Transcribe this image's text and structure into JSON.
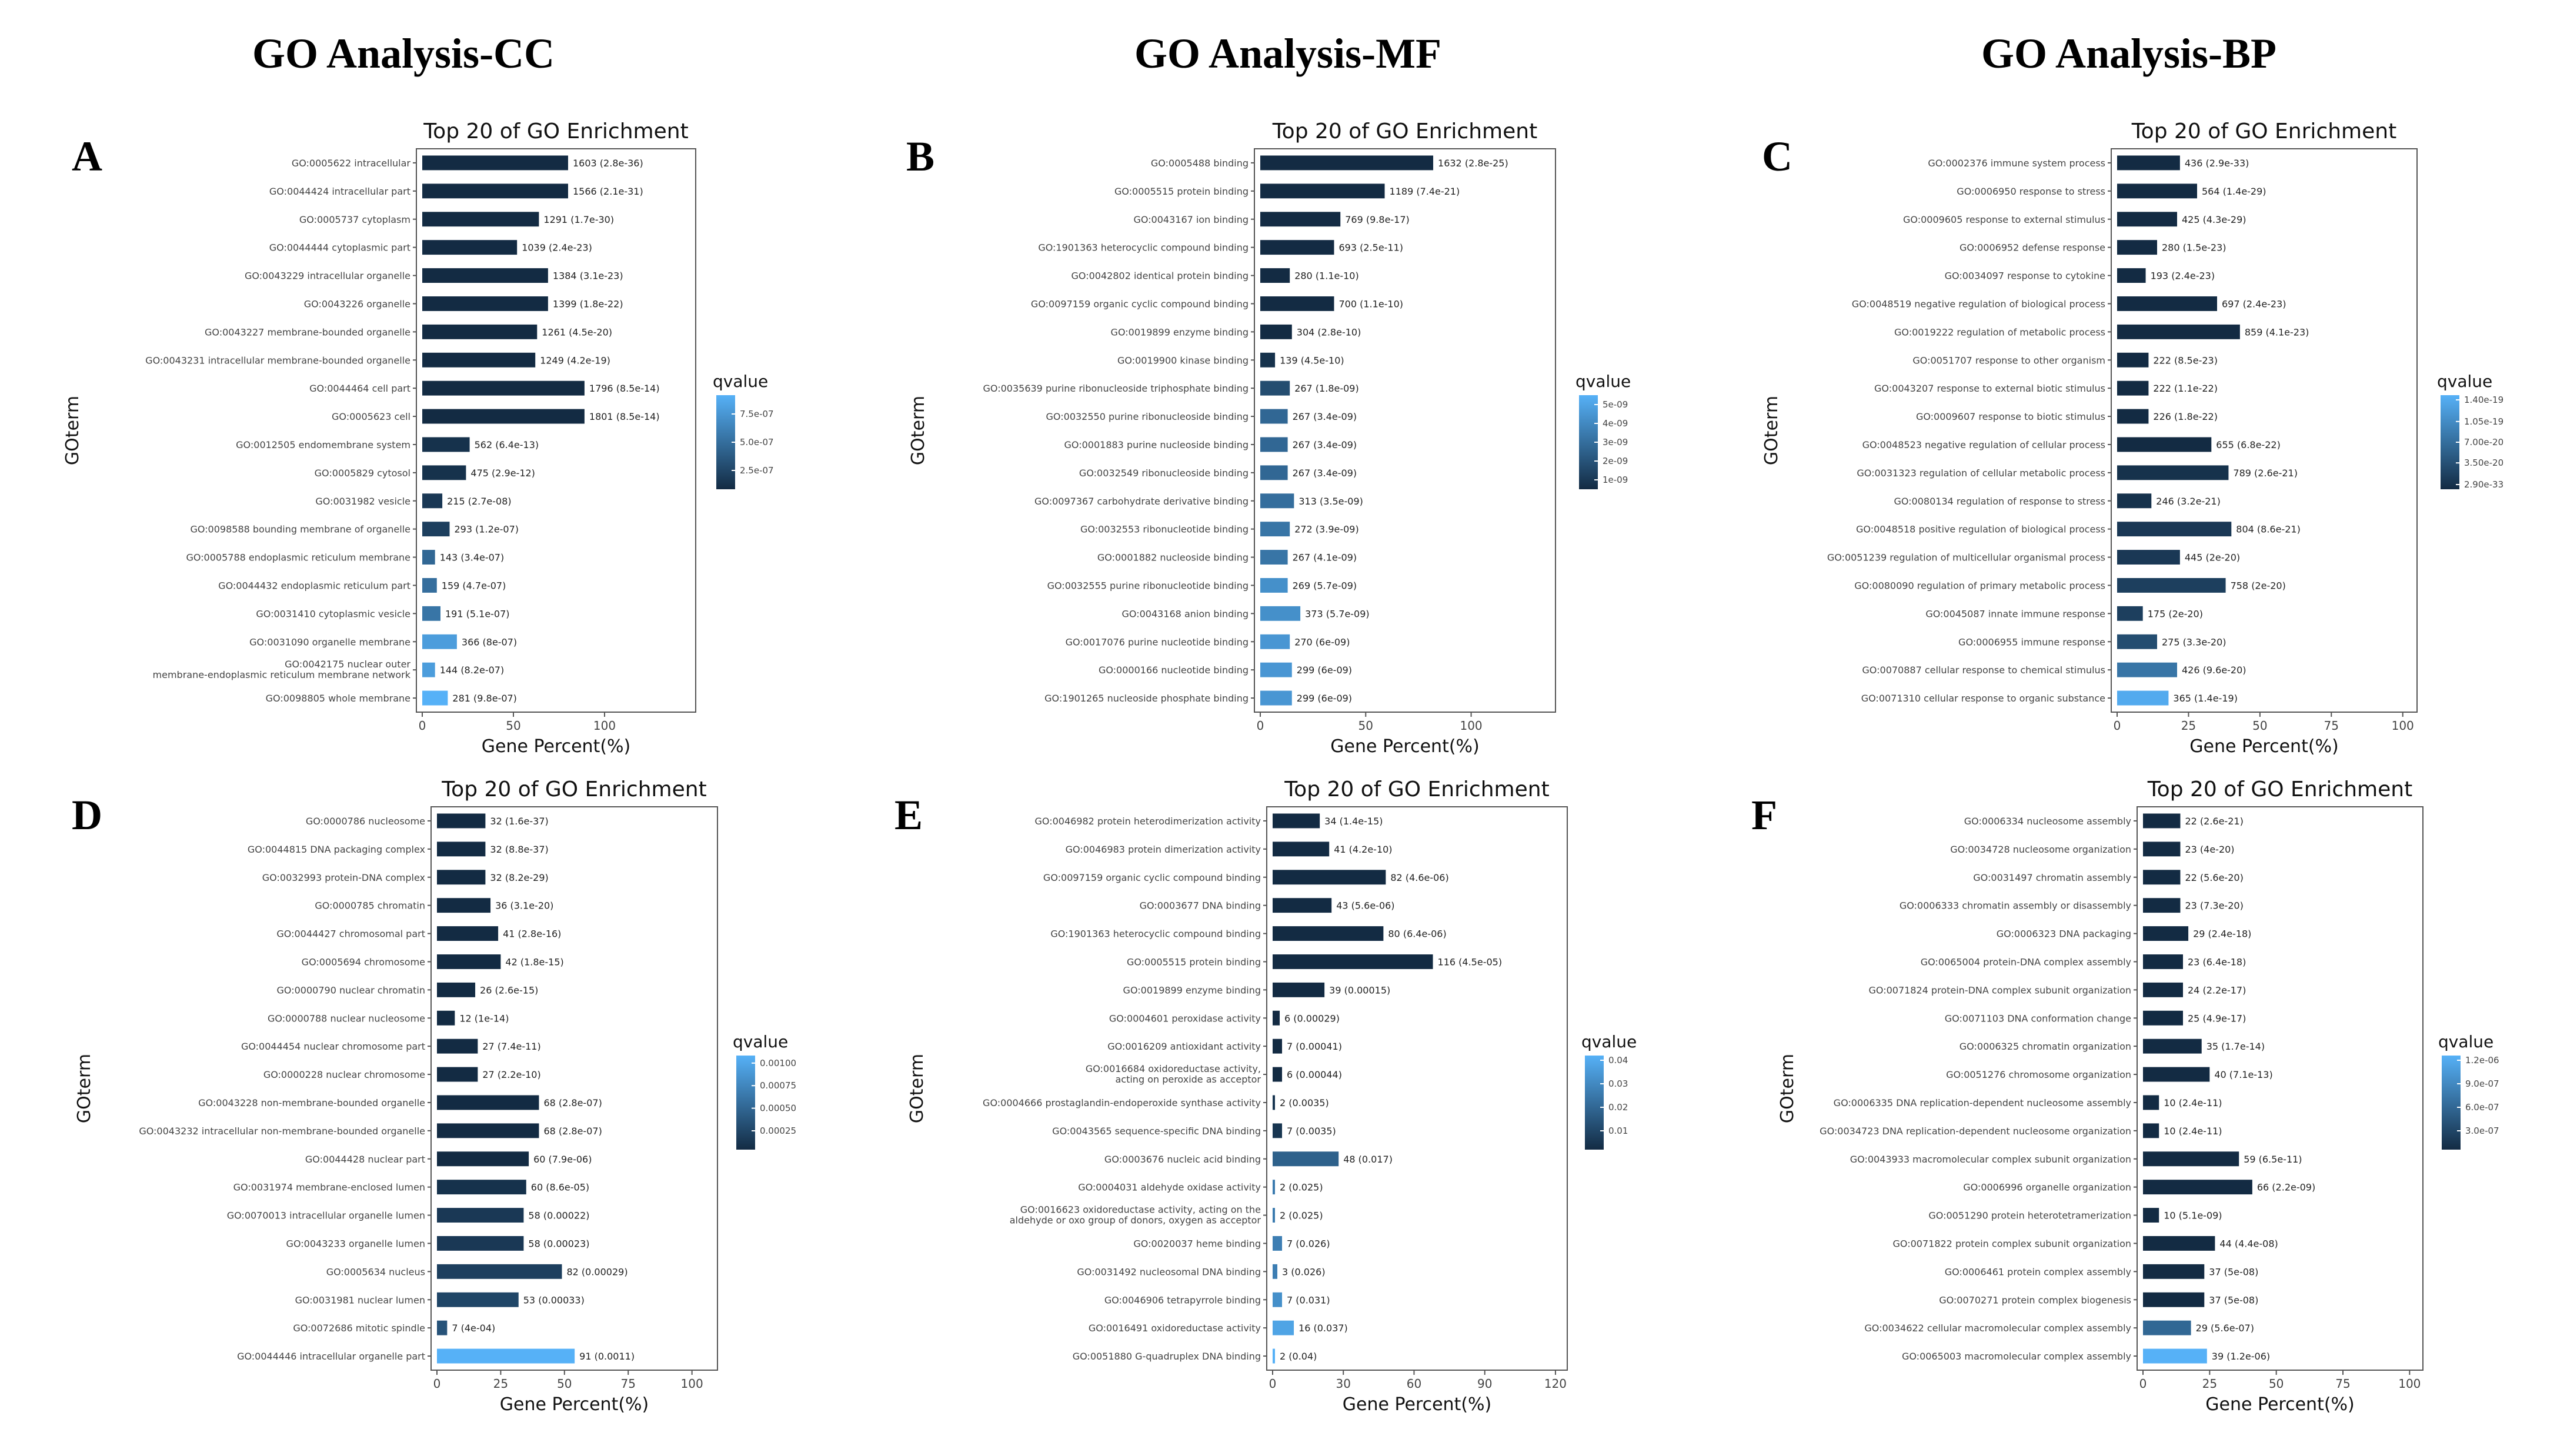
{
  "column_titles": [
    "GO Analysis-CC",
    "GO Analysis-MF",
    "GO Analysis-BP"
  ],
  "chart_data": [
    {
      "type": "bar",
      "panel_letter": "A",
      "title": "Top 20 of GO Enrichment",
      "xlabel": "Gene Percent(%)",
      "ylabel": "GOterm",
      "xlim": [
        0,
        150
      ],
      "xticks": [
        "0",
        "50",
        "100"
      ],
      "xtick_values": [
        0,
        50,
        100
      ],
      "legend_title": "qvalue",
      "legend_labels": [
        "7.5e-07",
        "5.0e-07",
        "2.5e-07"
      ],
      "legend_stops": [
        0.8,
        0.5,
        0.2
      ],
      "categories": [
        "GO:0005622 intracellular",
        "GO:0044424 intracellular part",
        "GO:0005737 cytoplasm",
        "GO:0044444 cytoplasmic part",
        "GO:0043229 intracellular organelle",
        "GO:0043226 organelle",
        "GO:0043227 membrane-bounded organelle",
        "GO:0043231 intracellular membrane-bounded organelle",
        "GO:0044464 cell part",
        "GO:0005623 cell",
        "GO:0012505 endomembrane system",
        "GO:0005829 cytosol",
        "GO:0031982 vesicle",
        "GO:0098588 bounding membrane of organelle",
        "GO:0005788 endoplasmic reticulum membrane",
        "GO:0044432 endoplasmic reticulum part",
        "GO:0031410 cytoplasmic vesicle",
        "GO:0031090 organelle membrane",
        "GO:0042175 nuclear outer membrane-endoplasmic reticulum membrane network",
        "GO:0098805 whole membrane"
      ],
      "values": [
        80,
        80,
        64,
        52,
        69,
        69,
        63,
        62,
        89,
        89,
        26,
        24,
        11,
        15,
        7,
        8,
        10,
        19,
        7,
        14
      ],
      "labels": [
        "1603 (2.8e-36)",
        "1566 (2.1e-31)",
        "1291 (1.7e-30)",
        "1039 (2.4e-23)",
        "1384 (3.1e-23)",
        "1399 (1.8e-22)",
        "1261 (4.5e-20)",
        "1249 (4.2e-19)",
        "1796 (8.5e-14)",
        "1801 (8.5e-14)",
        "562 (6.4e-13)",
        "475 (2.9e-12)",
        "215 (2.7e-08)",
        "293 (1.2e-07)",
        "143 (3.4e-07)",
        "159 (4.7e-07)",
        "191 (5.1e-07)",
        "366 (8e-07)",
        "144 (8.2e-07)",
        "281 (9.8e-07)"
      ],
      "color_levels": [
        0,
        0,
        0,
        0,
        0,
        0,
        0,
        0,
        0,
        0,
        0.05,
        0.05,
        0.1,
        0.15,
        0.45,
        0.5,
        0.55,
        0.85,
        0.85,
        1.0
      ]
    },
    {
      "type": "bar",
      "panel_letter": "B",
      "title": "Top 20 of GO Enrichment",
      "xlabel": "Gene Percent(%)",
      "ylabel": "GOterm",
      "xlim": [
        0,
        140
      ],
      "xticks": [
        "0",
        "50",
        "100"
      ],
      "xtick_values": [
        0,
        50,
        100
      ],
      "legend_title": "qvalue",
      "legend_labels": [
        "5e-09",
        "4e-09",
        "3e-09",
        "2e-09",
        "1e-09"
      ],
      "legend_stops": [
        0.9,
        0.7,
        0.5,
        0.3,
        0.1
      ],
      "categories": [
        "GO:0005488 binding",
        "GO:0005515 protein binding",
        "GO:0043167 ion binding",
        "GO:1901363 heterocyclic compound binding",
        "GO:0042802 identical protein binding",
        "GO:0097159 organic cyclic compound binding",
        "GO:0019899 enzyme binding",
        "GO:0019900 kinase binding",
        "GO:0035639 purine ribonucleoside triphosphate binding",
        "GO:0032550 purine ribonucleoside binding",
        "GO:0001883 purine nucleoside binding",
        "GO:0032549 ribonucleoside binding",
        "GO:0097367 carbohydrate derivative binding",
        "GO:0032553 ribonucleotide binding",
        "GO:0001882 nucleoside binding",
        "GO:0032555 purine ribonucleotide binding",
        "GO:0043168 anion binding",
        "GO:0017076 purine nucleotide binding",
        "GO:0000166 nucleotide binding",
        "GO:1901265 nucleoside phosphate binding"
      ],
      "values": [
        82,
        59,
        38,
        35,
        14,
        35,
        15,
        7,
        14,
        13,
        13,
        13,
        16,
        14,
        13,
        13,
        19,
        14,
        15,
        15
      ],
      "labels": [
        "1632 (2.8e-25)",
        "1189 (7.4e-21)",
        "769 (9.8e-17)",
        "693 (2.5e-11)",
        "280 (1.1e-10)",
        "700 (1.1e-10)",
        "304 (2.8e-10)",
        "139 (4.5e-10)",
        "267 (1.8e-09)",
        "267 (3.4e-09)",
        "267 (3.4e-09)",
        "267 (3.4e-09)",
        "313 (3.5e-09)",
        "272 (3.9e-09)",
        "267 (4.1e-09)",
        "269 (5.7e-09)",
        "373 (5.7e-09)",
        "270 (6e-09)",
        "299 (6e-09)",
        "299 (6e-09)"
      ],
      "color_levels": [
        0,
        0,
        0,
        0,
        0,
        0,
        0,
        0.05,
        0.25,
        0.45,
        0.45,
        0.45,
        0.5,
        0.55,
        0.55,
        0.75,
        0.75,
        0.8,
        0.8,
        0.8
      ]
    },
    {
      "type": "bar",
      "panel_letter": "C",
      "title": "Top 20 of GO Enrichment",
      "xlabel": "Gene Percent(%)",
      "ylabel": "GOterm",
      "xlim": [
        0,
        105
      ],
      "xticks": [
        "0",
        "25",
        "50",
        "75",
        "100"
      ],
      "xtick_values": [
        0,
        25,
        50,
        75,
        100
      ],
      "legend_title": "qvalue",
      "legend_labels": [
        "1.40e-19",
        "1.05e-19",
        "7.00e-20",
        "3.50e-20",
        "2.90e-33"
      ],
      "legend_stops": [
        0.95,
        0.72,
        0.5,
        0.28,
        0.05
      ],
      "categories": [
        "GO:0002376 immune system process",
        "GO:0006950 response to stress",
        "GO:0009605 response to external stimulus",
        "GO:0006952 defense response",
        "GO:0034097 response to cytokine",
        "GO:0048519 negative regulation of biological process",
        "GO:0019222 regulation of metabolic process",
        "GO:0051707 response to other organism",
        "GO:0043207 response to external biotic stimulus",
        "GO:0009607 response to biotic stimulus",
        "GO:0048523 negative regulation of cellular process",
        "GO:0031323 regulation of cellular metabolic process",
        "GO:0080134 regulation of response to stress",
        "GO:0048518 positive regulation of biological process",
        "GO:0051239 regulation of multicellular organismal process",
        "GO:0080090 regulation of primary metabolic process",
        "GO:0045087 innate immune response",
        "GO:0006955 immune response",
        "GO:0070887 cellular response to chemical stimulus",
        "GO:0071310 cellular response to organic substance"
      ],
      "values": [
        22,
        28,
        21,
        14,
        10,
        35,
        43,
        11,
        11,
        11,
        33,
        39,
        12,
        40,
        22,
        38,
        9,
        14,
        21,
        18
      ],
      "labels": [
        "436 (2.9e-33)",
        "564 (1.4e-29)",
        "425 (4.3e-29)",
        "280 (1.5e-23)",
        "193 (2.4e-23)",
        "697 (2.4e-23)",
        "859 (4.1e-23)",
        "222 (8.5e-23)",
        "222 (1.1e-22)",
        "226 (1.8e-22)",
        "655 (6.8e-22)",
        "789 (2.6e-21)",
        "246 (3.2e-21)",
        "804 (8.6e-21)",
        "445 (2e-20)",
        "758 (2e-20)",
        "175 (2e-20)",
        "275 (3.3e-20)",
        "426 (9.6e-20)",
        "365 (1.4e-19)"
      ],
      "color_levels": [
        0,
        0,
        0,
        0,
        0,
        0,
        0,
        0,
        0,
        0,
        0,
        0.05,
        0.05,
        0.1,
        0.1,
        0.15,
        0.15,
        0.25,
        0.55,
        0.95
      ]
    },
    {
      "type": "bar",
      "panel_letter": "D",
      "title": "Top 20 of GO Enrichment",
      "xlabel": "Gene Percent(%)",
      "ylabel": "GOterm",
      "xlim": [
        0,
        110
      ],
      "xticks": [
        "0",
        "25",
        "50",
        "75",
        "100"
      ],
      "xtick_values": [
        0,
        25,
        50,
        75,
        100
      ],
      "legend_title": "qvalue",
      "legend_labels": [
        "0.00100",
        "0.00075",
        "0.00050",
        "0.00025"
      ],
      "legend_stops": [
        0.92,
        0.68,
        0.44,
        0.2
      ],
      "categories": [
        "GO:0000786 nucleosome",
        "GO:0044815 DNA packaging complex",
        "GO:0032993 protein-DNA complex",
        "GO:0000785 chromatin",
        "GO:0044427 chromosomal part",
        "GO:0005694 chromosome",
        "GO:0000790 nuclear chromatin",
        "GO:0000788 nuclear nucleosome",
        "GO:0044454 nuclear chromosome part",
        "GO:0000228 nuclear chromosome",
        "GO:0043228 non-membrane-bounded organelle",
        "GO:0043232 intracellular non-membrane-bounded organelle",
        "GO:0044428 nuclear part",
        "GO:0031974 membrane-enclosed lumen",
        "GO:0070013 intracellular organelle lumen",
        "GO:0043233 organelle lumen",
        "GO:0005634 nucleus",
        "GO:0031981 nuclear lumen",
        "GO:0072686 mitotic spindle",
        "GO:0044446 intracellular organelle part"
      ],
      "values": [
        19,
        19,
        19,
        21,
        24,
        25,
        15,
        7,
        16,
        16,
        40,
        40,
        36,
        35,
        34,
        34,
        49,
        32,
        4,
        54
      ],
      "labels": [
        "32 (1.6e-37)",
        "32 (8.8e-37)",
        "32 (8.2e-29)",
        "36 (3.1e-20)",
        "41 (2.8e-16)",
        "42 (1.8e-15)",
        "26 (2.6e-15)",
        "12 (1e-14)",
        "27 (7.4e-11)",
        "27 (2.2e-10)",
        "68 (2.8e-07)",
        "68 (2.8e-07)",
        "60 (7.9e-06)",
        "60 (8.6e-05)",
        "58 (0.00022)",
        "58 (0.00023)",
        "82 (0.00029)",
        "53 (0.00033)",
        "7 (4e-04)",
        "91 (0.0011)"
      ],
      "color_levels": [
        0,
        0,
        0,
        0,
        0,
        0,
        0,
        0,
        0,
        0,
        0,
        0,
        0,
        0.05,
        0.1,
        0.1,
        0.15,
        0.2,
        0.3,
        1.0
      ]
    },
    {
      "type": "bar",
      "panel_letter": "E",
      "title": "Top 20 of GO Enrichment",
      "xlabel": "Gene Percent(%)",
      "ylabel": "GOterm",
      "xlim": [
        0,
        125
      ],
      "xticks": [
        "0",
        "30",
        "60",
        "90",
        "120"
      ],
      "xtick_values": [
        0,
        30,
        60,
        90,
        120
      ],
      "legend_title": "qvalue",
      "legend_labels": [
        "0.04",
        "0.03",
        "0.02",
        "0.01"
      ],
      "legend_stops": [
        0.95,
        0.7,
        0.45,
        0.2
      ],
      "categories": [
        "GO:0046982 protein heterodimerization activity",
        "GO:0046983 protein dimerization activity",
        "GO:0097159 organic cyclic compound binding",
        "GO:0003677 DNA binding",
        "GO:1901363 heterocyclic compound binding",
        "GO:0005515 protein binding",
        "GO:0019899 enzyme binding",
        "GO:0004601 peroxidase activity",
        "GO:0016209 antioxidant activity",
        "GO:0016684 oxidoreductase activity, acting on peroxide as acceptor",
        "GO:0004666 prostaglandin-endoperoxide synthase activity",
        "GO:0043565 sequence-specific DNA binding",
        "GO:0003676 nucleic acid binding",
        "GO:0004031 aldehyde oxidase activity",
        "GO:0016623 oxidoreductase activity, acting on the aldehyde or oxo group of donors, oxygen as acceptor",
        "GO:0020037 heme binding",
        "GO:0031492 nucleosomal DNA binding",
        "GO:0046906 tetrapyrrole binding",
        "GO:0016491 oxidoreductase activity",
        "GO:0051880 G-quadruplex DNA binding"
      ],
      "values": [
        20,
        24,
        48,
        25,
        47,
        68,
        22,
        3,
        4,
        4,
        1,
        4,
        28,
        1,
        1,
        4,
        2,
        4,
        9,
        1
      ],
      "labels": [
        "34 (1.4e-15)",
        "41 (4.2e-10)",
        "82 (4.6e-06)",
        "43 (5.6e-06)",
        "80 (6.4e-06)",
        "116 (4.5e-05)",
        "39 (0.00015)",
        "6 (0.00029)",
        "7 (0.00041)",
        "6 (0.00044)",
        "2 (0.0035)",
        "7 (0.0035)",
        "48 (0.017)",
        "2 (0.025)",
        "2 (0.025)",
        "7 (0.026)",
        "3 (0.026)",
        "7 (0.031)",
        "16 (0.037)",
        "2 (0.04)"
      ],
      "color_levels": [
        0,
        0,
        0,
        0,
        0,
        0,
        0,
        0,
        0,
        0,
        0.08,
        0.08,
        0.4,
        0.6,
        0.6,
        0.62,
        0.62,
        0.75,
        0.9,
        1.0
      ]
    },
    {
      "type": "bar",
      "panel_letter": "F",
      "title": "Top 20 of GO Enrichment",
      "xlabel": "Gene Percent(%)",
      "ylabel": "GOterm",
      "xlim": [
        0,
        105
      ],
      "xticks": [
        "0",
        "25",
        "50",
        "75",
        "100"
      ],
      "xtick_values": [
        0,
        25,
        50,
        75,
        100
      ],
      "legend_title": "qvalue",
      "legend_labels": [
        "1.2e-06",
        "9.0e-07",
        "6.0e-07",
        "3.0e-07"
      ],
      "legend_stops": [
        0.95,
        0.7,
        0.45,
        0.2
      ],
      "categories": [
        "GO:0006334 nucleosome assembly",
        "GO:0034728 nucleosome organization",
        "GO:0031497 chromatin assembly",
        "GO:0006333 chromatin assembly or disassembly",
        "GO:0006323 DNA packaging",
        "GO:0065004 protein-DNA complex assembly",
        "GO:0071824 protein-DNA complex subunit organization",
        "GO:0071103 DNA conformation change",
        "GO:0006325 chromatin organization",
        "GO:0051276 chromosome organization",
        "GO:0006335 DNA replication-dependent nucleosome assembly",
        "GO:0034723 DNA replication-dependent nucleosome organization",
        "GO:0043933 macromolecular complex subunit organization",
        "GO:0006996 organelle organization",
        "GO:0051290 protein heterotetramerization",
        "GO:0071822 protein complex subunit organization",
        "GO:0006461 protein complex assembly",
        "GO:0070271 protein complex biogenesis",
        "GO:0034622 cellular macromolecular complex assembly",
        "GO:0065003 macromolecular complex assembly"
      ],
      "values": [
        14,
        14,
        14,
        14,
        17,
        15,
        15,
        15,
        22,
        25,
        6,
        6,
        36,
        41,
        6,
        27,
        23,
        23,
        18,
        24
      ],
      "labels": [
        "22 (2.6e-21)",
        "23 (4e-20)",
        "22 (5.6e-20)",
        "23 (7.3e-20)",
        "29 (2.4e-18)",
        "23 (6.4e-18)",
        "24 (2.2e-17)",
        "25 (4.9e-17)",
        "35 (1.7e-14)",
        "40 (7.1e-13)",
        "10 (2.4e-11)",
        "10 (2.4e-11)",
        "59 (6.5e-11)",
        "66 (2.2e-09)",
        "10 (5.1e-09)",
        "44 (4.4e-08)",
        "37 (5e-08)",
        "37 (5e-08)",
        "29 (5.6e-07)",
        "39 (1.2e-06)"
      ],
      "color_levels": [
        0,
        0,
        0,
        0,
        0,
        0,
        0,
        0,
        0,
        0,
        0,
        0,
        0,
        0,
        0,
        0,
        0,
        0,
        0.45,
        1.0
      ]
    }
  ]
}
